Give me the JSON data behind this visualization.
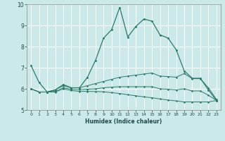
{
  "x": [
    0,
    1,
    2,
    3,
    4,
    5,
    6,
    7,
    8,
    9,
    10,
    11,
    12,
    13,
    14,
    15,
    16,
    17,
    18,
    19,
    20,
    21,
    22,
    23
  ],
  "line1": [
    7.1,
    6.3,
    5.85,
    5.95,
    6.2,
    6.05,
    6.05,
    6.55,
    7.35,
    8.4,
    8.8,
    9.85,
    8.45,
    8.95,
    9.3,
    9.2,
    8.55,
    8.4,
    7.85,
    6.85,
    6.5,
    6.5,
    5.95,
    5.45
  ],
  "line2": [
    6.0,
    5.85,
    5.85,
    5.95,
    6.15,
    6.05,
    6.05,
    6.15,
    6.25,
    6.35,
    6.45,
    6.55,
    6.6,
    6.65,
    6.7,
    6.75,
    6.6,
    6.58,
    6.55,
    6.72,
    6.48,
    6.48,
    6.05,
    5.5
  ],
  "line3": [
    6.0,
    5.85,
    5.85,
    5.88,
    6.05,
    5.98,
    5.96,
    5.98,
    6.0,
    6.05,
    6.08,
    6.1,
    6.1,
    6.1,
    6.1,
    6.1,
    6.0,
    5.98,
    5.95,
    6.0,
    5.9,
    5.9,
    5.7,
    5.45
  ],
  "line4": [
    6.0,
    5.85,
    5.85,
    5.85,
    6.0,
    5.92,
    5.88,
    5.88,
    5.87,
    5.86,
    5.82,
    5.78,
    5.72,
    5.67,
    5.62,
    5.58,
    5.52,
    5.47,
    5.43,
    5.38,
    5.38,
    5.38,
    5.38,
    5.45
  ],
  "color": "#2a7a68",
  "bg_color": "#cce9e9",
  "grid_color": "#ffffff",
  "xlabel": "Humidex (Indice chaleur)",
  "ylim": [
    5,
    10
  ],
  "xlim": [
    -0.5,
    23.5
  ],
  "yticks": [
    5,
    6,
    7,
    8,
    9,
    10
  ],
  "xticks": [
    0,
    1,
    2,
    3,
    4,
    5,
    6,
    7,
    8,
    9,
    10,
    11,
    12,
    13,
    14,
    15,
    16,
    17,
    18,
    19,
    20,
    21,
    22,
    23
  ]
}
